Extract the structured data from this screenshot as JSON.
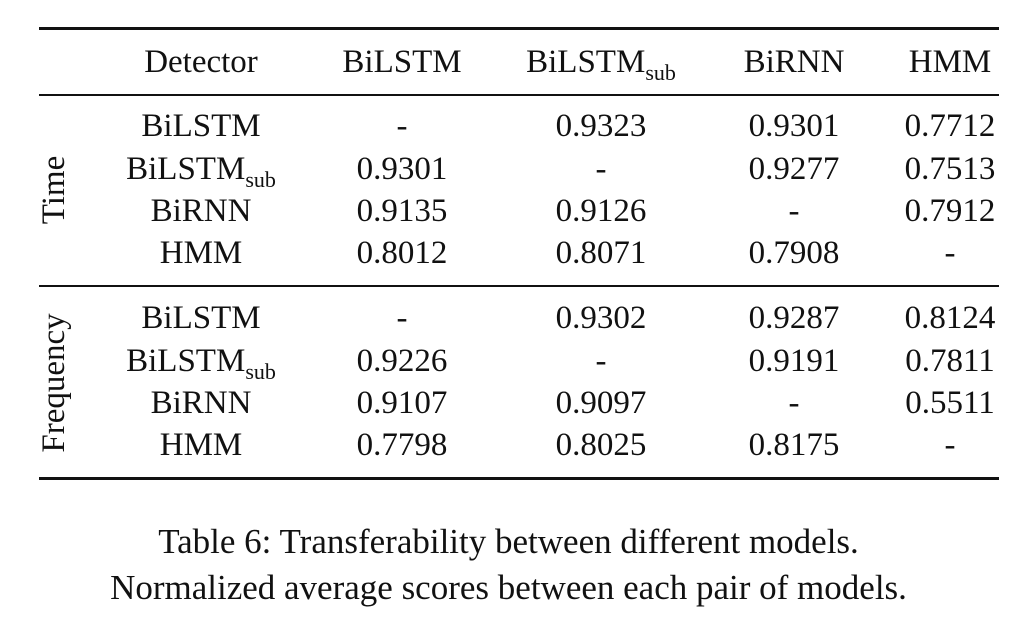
{
  "table": {
    "header": {
      "detector": "Detector",
      "cols": [
        {
          "base": "BiLSTM",
          "sub": ""
        },
        {
          "base": "BiLSTM",
          "sub": "sub"
        },
        {
          "base": "BiRNN",
          "sub": ""
        },
        {
          "base": "HMM",
          "sub": ""
        }
      ]
    },
    "groups": [
      {
        "label": "Time",
        "rows": [
          {
            "base": "BiLSTM",
            "sub": "",
            "values": [
              "-",
              "0.9323",
              "0.9301",
              "0.7712"
            ]
          },
          {
            "base": "BiLSTM",
            "sub": "sub",
            "values": [
              "0.9301",
              "-",
              "0.9277",
              "0.7513"
            ]
          },
          {
            "base": "BiRNN",
            "sub": "",
            "values": [
              "0.9135",
              "0.9126",
              "-",
              "0.7912"
            ]
          },
          {
            "base": "HMM",
            "sub": "",
            "values": [
              "0.8012",
              "0.8071",
              "0.7908",
              "-"
            ]
          }
        ]
      },
      {
        "label": "Frequency",
        "rows": [
          {
            "base": "BiLSTM",
            "sub": "",
            "values": [
              "-",
              "0.9302",
              "0.9287",
              "0.8124"
            ]
          },
          {
            "base": "BiLSTM",
            "sub": "sub",
            "values": [
              "0.9226",
              "-",
              "0.9191",
              "0.7811"
            ]
          },
          {
            "base": "BiRNN",
            "sub": "",
            "values": [
              "0.9107",
              "0.9097",
              "-",
              "0.5511"
            ]
          },
          {
            "base": "HMM",
            "sub": "",
            "values": [
              "0.7798",
              "0.8025",
              "0.8175",
              "-"
            ]
          }
        ]
      }
    ]
  },
  "caption": {
    "line1": "Table 6: Transferability between different models.",
    "line2": "Normalized average scores between each pair of models."
  }
}
